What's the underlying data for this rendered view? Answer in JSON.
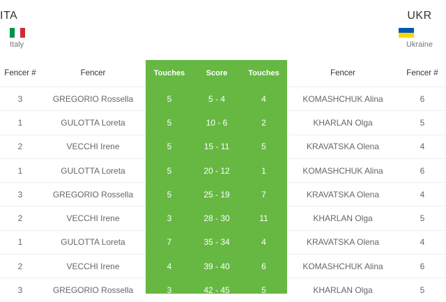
{
  "home": {
    "code": "ITA",
    "country": "Italy",
    "flag_colors": [
      "#009246",
      "#ffffff",
      "#ce2b37"
    ]
  },
  "away": {
    "code": "UKR",
    "country": "Ukraine",
    "flag_colors": [
      "#0057b7",
      "#ffd700"
    ]
  },
  "headers": [
    "Fencer #",
    "Fencer",
    "Touches",
    "Score",
    "Touches",
    "Fencer",
    "Fencer #"
  ],
  "accent_color": "#66b843",
  "rows": [
    {
      "home_num": "3",
      "home_fencer": "GREGORIO Rossella",
      "home_touches": "5",
      "score": "5 - 4",
      "away_touches": "4",
      "away_fencer": "KOMASHCHUK Alina",
      "away_num": "6"
    },
    {
      "home_num": "1",
      "home_fencer": "GULOTTA Loreta",
      "home_touches": "5",
      "score": "10 - 6",
      "away_touches": "2",
      "away_fencer": "KHARLAN Olga",
      "away_num": "5"
    },
    {
      "home_num": "2",
      "home_fencer": "VECCHI Irene",
      "home_touches": "5",
      "score": "15 - 11",
      "away_touches": "5",
      "away_fencer": "KRAVATSKA Olena",
      "away_num": "4"
    },
    {
      "home_num": "1",
      "home_fencer": "GULOTTA Loreta",
      "home_touches": "5",
      "score": "20 - 12",
      "away_touches": "1",
      "away_fencer": "KOMASHCHUK Alina",
      "away_num": "6"
    },
    {
      "home_num": "3",
      "home_fencer": "GREGORIO Rossella",
      "home_touches": "5",
      "score": "25 - 19",
      "away_touches": "7",
      "away_fencer": "KRAVATSKA Olena",
      "away_num": "4"
    },
    {
      "home_num": "2",
      "home_fencer": "VECCHI Irene",
      "home_touches": "3",
      "score": "28 - 30",
      "away_touches": "11",
      "away_fencer": "KHARLAN Olga",
      "away_num": "5"
    },
    {
      "home_num": "1",
      "home_fencer": "GULOTTA Loreta",
      "home_touches": "7",
      "score": "35 - 34",
      "away_touches": "4",
      "away_fencer": "KRAVATSKA Olena",
      "away_num": "4"
    },
    {
      "home_num": "2",
      "home_fencer": "VECCHI Irene",
      "home_touches": "4",
      "score": "39 - 40",
      "away_touches": "6",
      "away_fencer": "KOMASHCHUK Alina",
      "away_num": "6"
    },
    {
      "home_num": "3",
      "home_fencer": "GREGORIO Rossella",
      "home_touches": "3",
      "score": "42 - 45",
      "away_touches": "5",
      "away_fencer": "KHARLAN Olga",
      "away_num": "5"
    }
  ]
}
